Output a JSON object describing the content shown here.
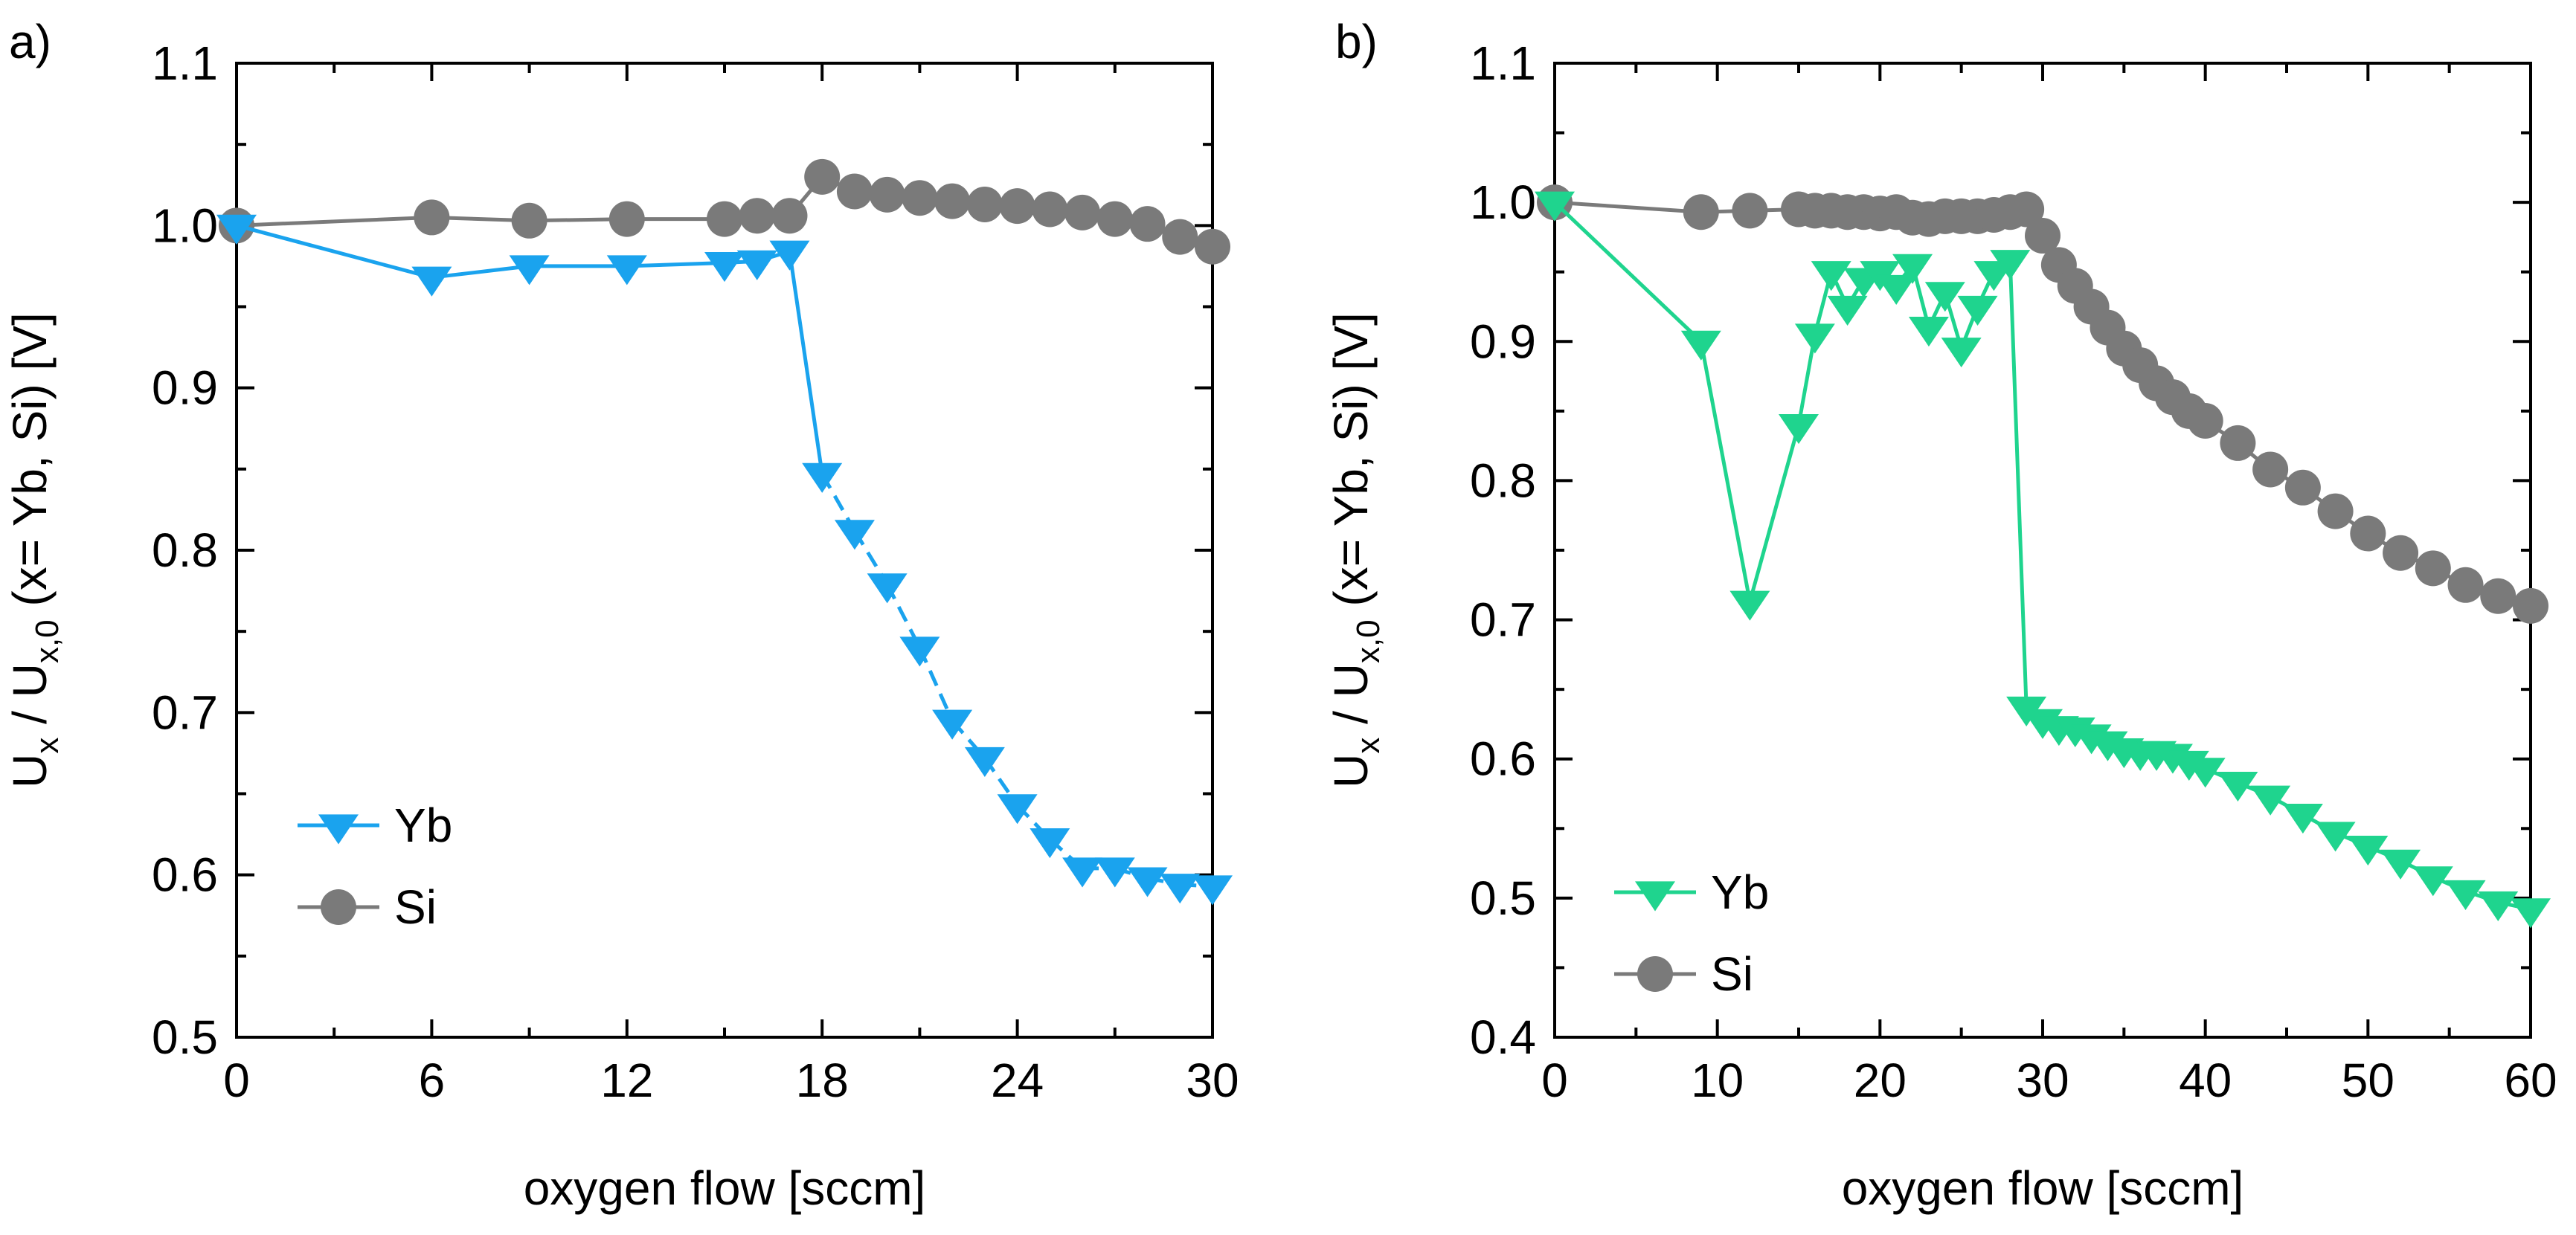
{
  "chart_data": [
    {
      "panel_label": "a)",
      "type": "line",
      "xlabel": "oxygen flow [sccm]",
      "ylabel_parts": {
        "u1": "U",
        "s1": "x",
        "mid": " / U",
        "s2": "x,0",
        "rest": " (x= Yb, Si) [V]"
      },
      "xlim": [
        0,
        30
      ],
      "ylim": [
        0.5,
        1.1
      ],
      "xticks": [
        0,
        6,
        12,
        18,
        24,
        30
      ],
      "xticks_minor": [
        3,
        9,
        15,
        21,
        27
      ],
      "yticks": [
        0.5,
        0.6,
        0.7,
        0.8,
        0.9,
        1.0,
        1.1
      ],
      "yticks_minor": [
        0.55,
        0.65,
        0.75,
        0.85,
        0.95,
        1.05
      ],
      "xtick_labels": [
        "0",
        "6",
        "12",
        "18",
        "24",
        "30"
      ],
      "ytick_labels": [
        "0.5",
        "0.6",
        "0.7",
        "0.8",
        "0.9",
        "1.0",
        "1.1"
      ],
      "legend": {
        "position": "bottom-left",
        "entries": [
          "Yb",
          "Si"
        ]
      },
      "series": [
        {
          "name": "Yb",
          "marker": "triangle-down",
          "color": "#1aa3ee",
          "dash_from_x": 18,
          "x": [
            0,
            6,
            9,
            12,
            15,
            16,
            17,
            18,
            19,
            20,
            21,
            22,
            23,
            24,
            25,
            26,
            27,
            28,
            29,
            30
          ],
          "y": [
            1.0,
            0.968,
            0.975,
            0.975,
            0.977,
            0.978,
            0.984,
            0.847,
            0.812,
            0.779,
            0.74,
            0.695,
            0.672,
            0.643,
            0.622,
            0.604,
            0.604,
            0.598,
            0.594,
            0.593
          ]
        },
        {
          "name": "Si",
          "marker": "circle",
          "color": "#7a7a7a",
          "x": [
            0,
            6,
            9,
            12,
            15,
            16,
            17,
            18,
            19,
            20,
            21,
            22,
            23,
            24,
            25,
            26,
            27,
            28,
            29,
            30
          ],
          "y": [
            1.0,
            1.005,
            1.003,
            1.004,
            1.004,
            1.006,
            1.006,
            1.03,
            1.021,
            1.019,
            1.017,
            1.015,
            1.013,
            1.012,
            1.01,
            1.008,
            1.004,
            1.001,
            0.993,
            0.987
          ]
        }
      ]
    },
    {
      "panel_label": "b)",
      "type": "line",
      "xlabel": "oxygen flow [sccm]",
      "ylabel_parts": {
        "u1": "U",
        "s1": "x",
        "mid": " / U",
        "s2": "x,0",
        "rest": " (x= Yb, Si) [V]"
      },
      "xlim": [
        0,
        60
      ],
      "ylim": [
        0.4,
        1.1
      ],
      "xticks": [
        0,
        10,
        20,
        30,
        40,
        50,
        60
      ],
      "xticks_minor": [
        5,
        15,
        25,
        35,
        45,
        55
      ],
      "yticks": [
        0.4,
        0.5,
        0.6,
        0.7,
        0.8,
        0.9,
        1.0,
        1.1
      ],
      "yticks_minor": [
        0.45,
        0.55,
        0.65,
        0.75,
        0.85,
        0.95,
        1.05
      ],
      "xtick_labels": [
        "0",
        "10",
        "20",
        "30",
        "40",
        "50",
        "60"
      ],
      "ytick_labels": [
        "0.4",
        "0.5",
        "0.6",
        "0.7",
        "0.8",
        "0.9",
        "1.0",
        "1.1"
      ],
      "legend": {
        "position": "bottom-left",
        "entries": [
          "Yb",
          "Si"
        ]
      },
      "series": [
        {
          "name": "Yb",
          "marker": "triangle-down",
          "color": "#1fd48e",
          "x": [
            0,
            9,
            12,
            15,
            16,
            17,
            18,
            19,
            20,
            21,
            22,
            23,
            24,
            25,
            26,
            27,
            28,
            29,
            30,
            31,
            32,
            33,
            34,
            35,
            36,
            37,
            38,
            39,
            40,
            42,
            44,
            46,
            48,
            50,
            52,
            54,
            56,
            58,
            60
          ],
          "y": [
            1.0,
            0.9,
            0.713,
            0.84,
            0.905,
            0.95,
            0.925,
            0.945,
            0.95,
            0.94,
            0.955,
            0.91,
            0.935,
            0.895,
            0.925,
            0.95,
            0.958,
            0.637,
            0.628,
            0.623,
            0.622,
            0.617,
            0.612,
            0.607,
            0.605,
            0.605,
            0.603,
            0.598,
            0.593,
            0.583,
            0.573,
            0.56,
            0.547,
            0.537,
            0.527,
            0.515,
            0.505,
            0.497,
            0.492
          ]
        },
        {
          "name": "Si",
          "marker": "circle",
          "color": "#7a7a7a",
          "x": [
            0,
            9,
            12,
            15,
            16,
            17,
            18,
            19,
            20,
            21,
            22,
            23,
            24,
            25,
            26,
            27,
            28,
            29,
            30,
            31,
            32,
            33,
            34,
            35,
            36,
            37,
            38,
            39,
            40,
            42,
            44,
            46,
            48,
            50,
            52,
            54,
            56,
            58,
            60
          ],
          "y": [
            1.0,
            0.993,
            0.994,
            0.995,
            0.994,
            0.994,
            0.993,
            0.993,
            0.992,
            0.993,
            0.989,
            0.988,
            0.99,
            0.99,
            0.99,
            0.991,
            0.993,
            0.995,
            0.976,
            0.955,
            0.94,
            0.925,
            0.91,
            0.895,
            0.883,
            0.87,
            0.86,
            0.85,
            0.843,
            0.827,
            0.808,
            0.795,
            0.778,
            0.762,
            0.748,
            0.737,
            0.725,
            0.717,
            0.71
          ]
        }
      ]
    }
  ]
}
